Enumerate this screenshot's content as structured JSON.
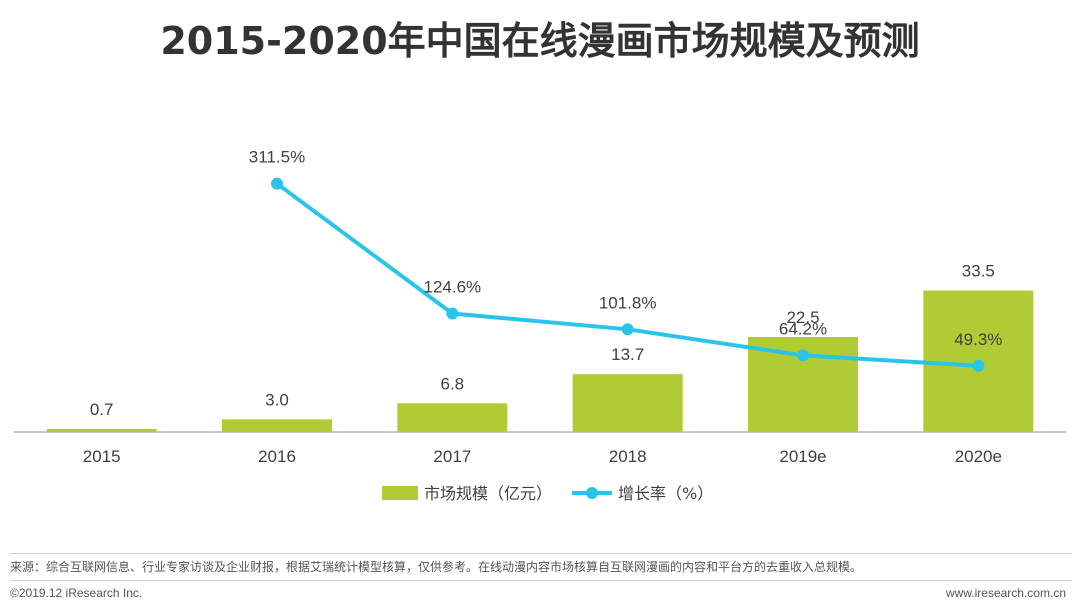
{
  "title": "2015-2020年中国在线漫画市场规模及预测",
  "chart_data": {
    "type": "bar",
    "categories": [
      "2015",
      "2016",
      "2017",
      "2018",
      "2019e",
      "2020e"
    ],
    "series": [
      {
        "name": "市场规模（亿元）",
        "kind": "bar",
        "values": [
          0.7,
          3.0,
          6.8,
          13.7,
          22.5,
          33.5
        ],
        "labels": [
          "0.7",
          "3.0",
          "6.8",
          "13.7",
          "22.5",
          "33.5"
        ],
        "color": "#b0cc34"
      },
      {
        "name": "增长率（%）",
        "kind": "line",
        "values": [
          null,
          311.5,
          124.6,
          101.8,
          64.2,
          49.3
        ],
        "labels": [
          "",
          "311.5%",
          "124.6%",
          "101.8%",
          "64.2%",
          "49.3%"
        ],
        "color": "#29c4e8"
      }
    ],
    "ylim": [
      0,
      36
    ],
    "y2lim": [
      0,
      360
    ],
    "grid": false,
    "legend": "bottom"
  },
  "footer": {
    "source": "来源：综合互联网信息、行业专家访谈及企业财报，根据艾瑞统计模型核算，仅供参考。在线动漫内容市场核算自互联网漫画的内容和平台方的去重收入总规模。",
    "copyright": "©2019.12 iResearch Inc.",
    "website": "www.iresearch.com.cn"
  }
}
